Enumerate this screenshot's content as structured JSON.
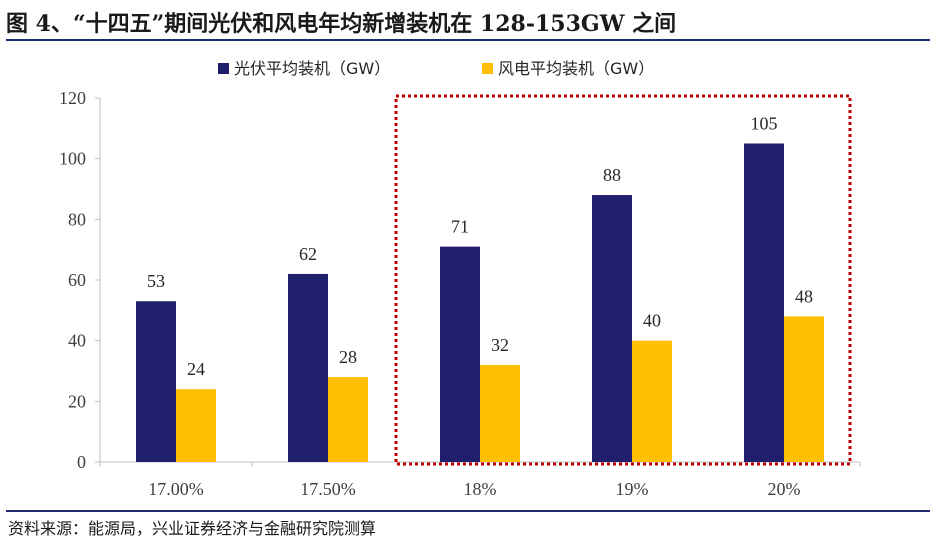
{
  "figure": {
    "title": "图 4、“十四五”期间光伏和风电年均新增装机在 128-153GW 之间",
    "source": "资料来源：能源局，兴业证券经济与金融研究院测算"
  },
  "chart_data": {
    "type": "bar",
    "categories": [
      "17.00%",
      "17.50%",
      "18%",
      "19%",
      "20%"
    ],
    "series": [
      {
        "name": "光伏平均装机（GW）",
        "values": [
          53,
          62,
          71,
          88,
          105
        ],
        "color": "#1f1f6e"
      },
      {
        "name": "风电平均装机（GW）",
        "values": [
          24,
          28,
          32,
          40,
          48
        ],
        "color": "#ffbf00"
      }
    ],
    "ylim": [
      0,
      120
    ],
    "yticks": [
      0,
      20,
      40,
      60,
      80,
      100,
      120
    ],
    "legend_position": "top",
    "grid": false,
    "highlight": {
      "categories": [
        "18%",
        "19%",
        "20%"
      ],
      "style": "dotted",
      "color": "#c00000"
    }
  }
}
